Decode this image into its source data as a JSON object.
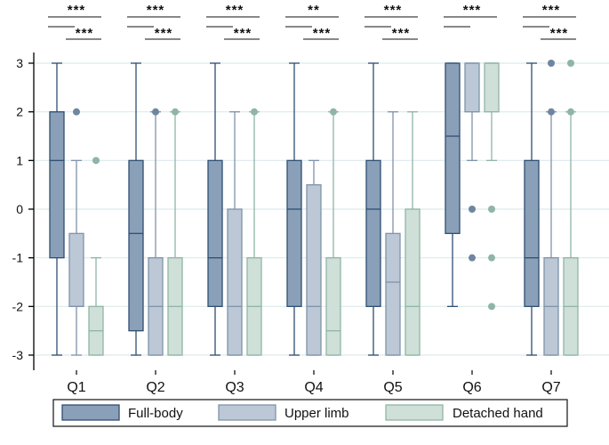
{
  "chart_data": {
    "type": "boxplot",
    "title": "",
    "xlabel": "",
    "ylabel": "",
    "ylim": [
      -3.3,
      3.3
    ],
    "yticks": [
      -3,
      -2,
      -1,
      0,
      1,
      2,
      3
    ],
    "ytick_labels": [
      "-3",
      "-2",
      "-1",
      "0",
      "1",
      "2",
      "3"
    ],
    "grid": true,
    "legend_position": "bottom",
    "categories": [
      "Q1",
      "Q2",
      "Q3",
      "Q4",
      "Q5",
      "Q6",
      "Q7"
    ],
    "series": [
      {
        "name": "Full-body",
        "color": "#8aa0b8",
        "stroke": "#2e4f72",
        "boxes": [
          {
            "whisker_low": -3,
            "q1": -1,
            "median": 1,
            "q3": 2,
            "whisker_high": 3,
            "outliers": []
          },
          {
            "whisker_low": -3,
            "q1": -2.5,
            "median": -0.5,
            "q3": 1,
            "whisker_high": 3,
            "outliers": []
          },
          {
            "whisker_low": -3,
            "q1": -2,
            "median": -1,
            "q3": 1,
            "whisker_high": 3,
            "outliers": []
          },
          {
            "whisker_low": -3,
            "q1": -2,
            "median": 0,
            "q3": 1,
            "whisker_high": 3,
            "outliers": []
          },
          {
            "whisker_low": -3,
            "q1": -2,
            "median": 0,
            "q3": 1,
            "whisker_high": 3,
            "outliers": []
          },
          {
            "whisker_low": -2,
            "q1": -0.5,
            "median": 1.5,
            "q3": 3,
            "whisker_high": 3,
            "outliers": []
          },
          {
            "whisker_low": -3,
            "q1": -2,
            "median": -1,
            "q3": 1,
            "whisker_high": 3,
            "outliers": []
          }
        ]
      },
      {
        "name": "Upper limb",
        "color": "#bcc8d6",
        "stroke": "#7f93a9",
        "boxes": [
          {
            "whisker_low": -3,
            "q1": -2,
            "median": -2,
            "q3": -0.5,
            "whisker_high": 1,
            "outliers": [
              2
            ]
          },
          {
            "whisker_low": -3,
            "q1": -3,
            "median": -2,
            "q3": -1,
            "whisker_high": 2,
            "outliers": [
              2
            ]
          },
          {
            "whisker_low": -3,
            "q1": -3,
            "median": -2,
            "q3": 0,
            "whisker_high": 2,
            "outliers": []
          },
          {
            "whisker_low": -3,
            "q1": -3,
            "median": -2,
            "q3": 0.5,
            "whisker_high": 1,
            "outliers": []
          },
          {
            "whisker_low": -3,
            "q1": -3,
            "median": -1.5,
            "q3": -0.5,
            "whisker_high": 2,
            "outliers": []
          },
          {
            "whisker_low": 1,
            "q1": 2,
            "median": 3,
            "q3": 3,
            "whisker_high": 3,
            "outliers": [
              0,
              -1
            ]
          },
          {
            "whisker_low": -3,
            "q1": -3,
            "median": -2,
            "q3": -1,
            "whisker_high": 2,
            "outliers": [
              2,
              3
            ]
          }
        ]
      },
      {
        "name": "Detached hand",
        "color": "#cfe0d8",
        "stroke": "#8fb5a6",
        "boxes": [
          {
            "whisker_low": -3,
            "q1": -3,
            "median": -2.5,
            "q3": -2,
            "whisker_high": -1,
            "outliers": [
              1
            ]
          },
          {
            "whisker_low": -3,
            "q1": -3,
            "median": -2,
            "q3": -1,
            "whisker_high": 2,
            "outliers": [
              2
            ]
          },
          {
            "whisker_low": -3,
            "q1": -3,
            "median": -2,
            "q3": -1,
            "whisker_high": 2,
            "outliers": [
              2
            ]
          },
          {
            "whisker_low": -3,
            "q1": -3,
            "median": -2.5,
            "q3": -1,
            "whisker_high": 2,
            "outliers": [
              2
            ]
          },
          {
            "whisker_low": -3,
            "q1": -3,
            "median": -2,
            "q3": 0,
            "whisker_high": 2,
            "outliers": []
          },
          {
            "whisker_low": 1,
            "q1": 2,
            "median": 3,
            "q3": 3,
            "whisker_high": 3,
            "outliers": [
              0,
              -1,
              -2
            ]
          },
          {
            "whisker_low": -3,
            "q1": -3,
            "median": -2,
            "q3": -1,
            "whisker_high": 2,
            "outliers": [
              2,
              3
            ]
          }
        ]
      }
    ],
    "significance": [
      {
        "category": "Q1",
        "top": "***",
        "bottom": "***"
      },
      {
        "category": "Q2",
        "top": "***",
        "bottom": "***"
      },
      {
        "category": "Q3",
        "top": "***",
        "bottom": "***"
      },
      {
        "category": "Q4",
        "top": "**",
        "bottom": "***"
      },
      {
        "category": "Q5",
        "top": "***",
        "bottom": "***"
      },
      {
        "category": "Q6",
        "top": "***",
        "bottom": ""
      },
      {
        "category": "Q7",
        "top": "***",
        "bottom": "***"
      }
    ],
    "colors": {
      "grid": "#dde9ec",
      "axis": "#000000",
      "outlier_full_body": "#2e4f72",
      "outlier_upper_limb": "#6f86a0",
      "outlier_detached_hand": "#8fb5a6"
    }
  }
}
